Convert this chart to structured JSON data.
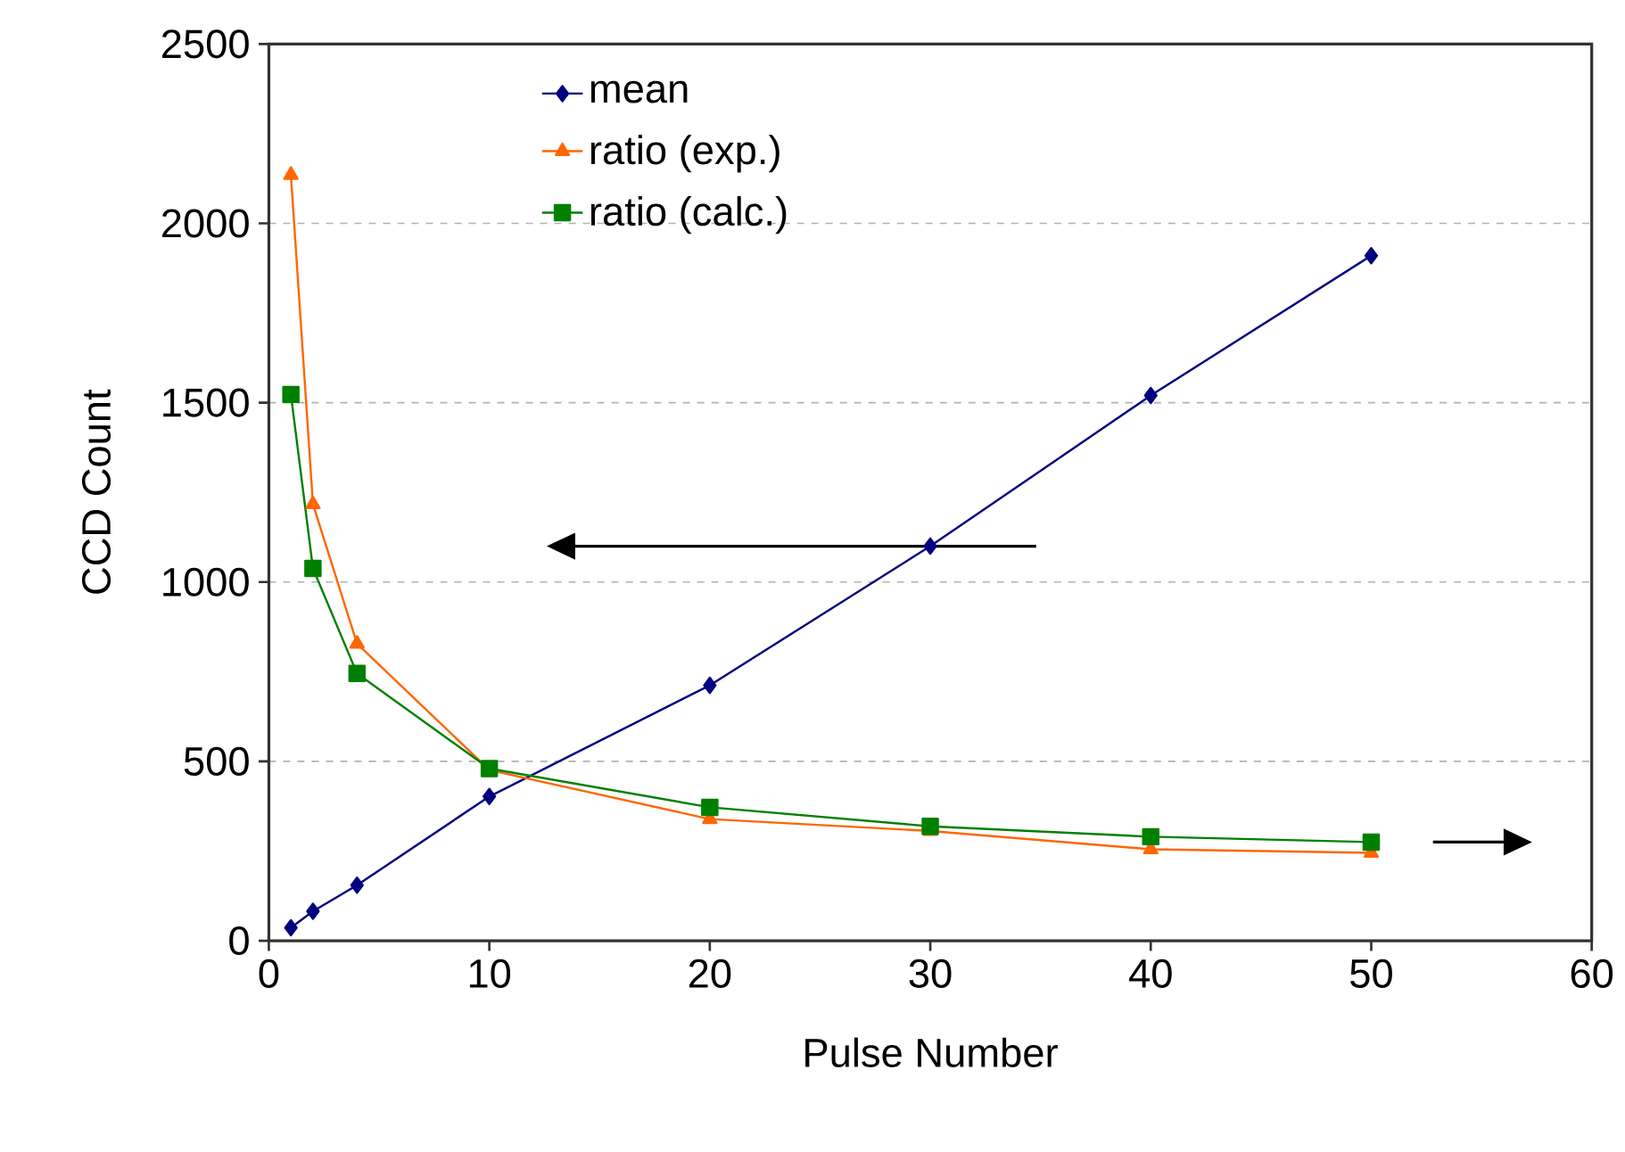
{
  "chart_data": {
    "type": "line",
    "xlabel": "Pulse Number",
    "ylabel": "CCD Count",
    "x": [
      1,
      2,
      4,
      10,
      20,
      30,
      40,
      50
    ],
    "series": [
      {
        "name": "mean",
        "color": "#000080",
        "marker": "diamond",
        "values": [
          36,
          82,
          155,
          402,
          712,
          1100,
          1520,
          1910
        ]
      },
      {
        "name": "ratio (exp.)",
        "color": "#ff6600",
        "marker": "triangle",
        "values": [
          2135,
          1217,
          828,
          476,
          339,
          306,
          255,
          245
        ]
      },
      {
        "name": "ratio (calc.)",
        "color": "#008000",
        "marker": "square",
        "values": [
          1523,
          1038,
          745,
          480,
          372,
          319,
          290,
          275
        ]
      }
    ],
    "xlim": [
      0,
      60
    ],
    "xticks": [
      0,
      10,
      20,
      30,
      40,
      50,
      60
    ],
    "ylim": [
      0,
      2500
    ],
    "yticks": [
      0,
      500,
      1000,
      1500,
      2000,
      2500
    ],
    "grid": "y",
    "legend": "top left",
    "line_style": "solid"
  }
}
